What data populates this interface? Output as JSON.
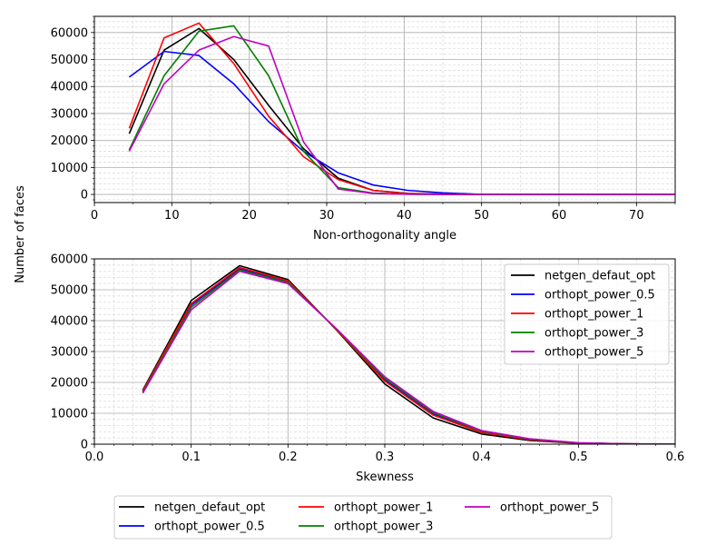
{
  "figure": {
    "ylabel_shared": "Number of faces"
  },
  "legend_entries": [
    {
      "name": "netgen_defaut_opt",
      "color": "#000000"
    },
    {
      "name": "orthopt_power_0.5",
      "color": "#0000ff"
    },
    {
      "name": "orthopt_power_1",
      "color": "#ff0000"
    },
    {
      "name": "orthopt_power_3",
      "color": "#008000"
    },
    {
      "name": "orthopt_power_5",
      "color": "#c000c0"
    }
  ],
  "chart_data": [
    {
      "type": "line",
      "xlabel": "Non-orthogonality angle",
      "ylabel": "",
      "xlim": [
        0,
        75
      ],
      "ylim": [
        -3000,
        66000
      ],
      "xticks": [
        "0",
        "10",
        "20",
        "30",
        "40",
        "50",
        "60",
        "70"
      ],
      "yticks": [
        "0",
        "10000",
        "20000",
        "30000",
        "40000",
        "50000",
        "60000"
      ],
      "grid": true,
      "legend": "none",
      "x": [
        4.5,
        9,
        13.5,
        18,
        22.5,
        27,
        31.5,
        36,
        40.5,
        45,
        49.5,
        54,
        58.5,
        63,
        67.5,
        72,
        75
      ],
      "series": [
        {
          "name": "netgen_defaut_opt",
          "color": "#000000",
          "values": [
            22500,
            53500,
            61500,
            50000,
            33000,
            17000,
            6000,
            1500,
            400,
            100,
            0,
            0,
            0,
            0,
            0,
            0,
            0
          ]
        },
        {
          "name": "orthopt_power_0.5",
          "color": "#0000ff",
          "values": [
            43500,
            53000,
            51500,
            41000,
            27000,
            16000,
            8000,
            3500,
            1500,
            600,
            100,
            0,
            0,
            0,
            0,
            0,
            0
          ]
        },
        {
          "name": "orthopt_power_1",
          "color": "#ff0000",
          "values": [
            24500,
            58000,
            63500,
            48500,
            29000,
            14000,
            5500,
            1500,
            300,
            100,
            0,
            0,
            0,
            0,
            0,
            0,
            0
          ]
        },
        {
          "name": "orthopt_power_3",
          "color": "#008000",
          "values": [
            16500,
            44000,
            60500,
            62500,
            44000,
            16000,
            2500,
            500,
            100,
            0,
            0,
            0,
            0,
            0,
            0,
            0,
            0
          ]
        },
        {
          "name": "orthopt_power_5",
          "color": "#c000c0",
          "values": [
            16000,
            41000,
            53500,
            58500,
            55000,
            19500,
            2000,
            400,
            100,
            0,
            0,
            0,
            0,
            0,
            0,
            0,
            0
          ]
        }
      ]
    },
    {
      "type": "line",
      "xlabel": "Skewness",
      "ylabel": "",
      "xlim": [
        0,
        0.6
      ],
      "ylim": [
        0,
        60000
      ],
      "xticks": [
        "0.0",
        "0.1",
        "0.2",
        "0.3",
        "0.4",
        "0.5",
        "0.6"
      ],
      "yticks": [
        "0",
        "10000",
        "20000",
        "30000",
        "40000",
        "50000",
        "60000"
      ],
      "grid": true,
      "legend": "top-right",
      "x": [
        0.05,
        0.1,
        0.15,
        0.2,
        0.25,
        0.3,
        0.35,
        0.4,
        0.45,
        0.5,
        0.55,
        0.6
      ],
      "series": [
        {
          "name": "netgen_defaut_opt",
          "color": "#000000",
          "values": [
            17500,
            46500,
            57800,
            53300,
            37000,
            19500,
            8500,
            3300,
            1200,
            300,
            100,
            0
          ]
        },
        {
          "name": "orthopt_power_0.5",
          "color": "#0000ff",
          "values": [
            17000,
            45000,
            56800,
            52700,
            37200,
            20800,
            9800,
            4000,
            1500,
            400,
            100,
            0
          ]
        },
        {
          "name": "orthopt_power_1",
          "color": "#ff0000",
          "values": [
            17200,
            45500,
            57200,
            52900,
            37100,
            20400,
            9400,
            3800,
            1400,
            350,
            100,
            0
          ]
        },
        {
          "name": "orthopt_power_3",
          "color": "#008000",
          "values": [
            16800,
            44300,
            56400,
            52400,
            37300,
            21300,
            10200,
            4200,
            1600,
            400,
            100,
            0
          ]
        },
        {
          "name": "orthopt_power_5",
          "color": "#c000c0",
          "values": [
            16500,
            43500,
            56000,
            52000,
            37400,
            21800,
            10600,
            4400,
            1700,
            450,
            100,
            0
          ]
        }
      ]
    }
  ]
}
